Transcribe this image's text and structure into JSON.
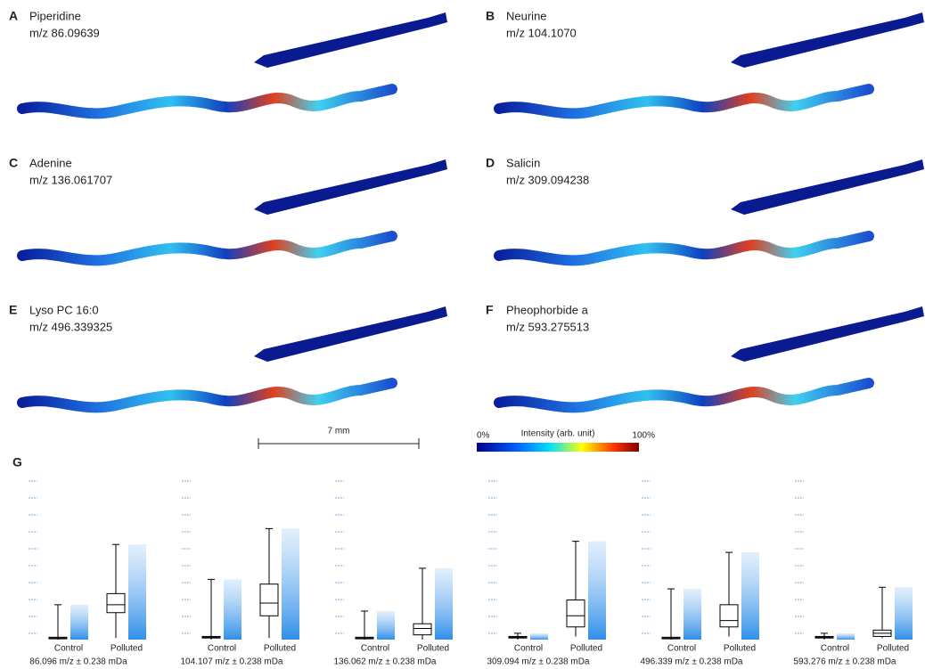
{
  "panels": [
    {
      "letter": "A",
      "compound": "Piperidine",
      "mz": "m/z 86.09639"
    },
    {
      "letter": "B",
      "compound": "Neurine",
      "mz": "m/z 104.1070"
    },
    {
      "letter": "C",
      "compound": "Adenine",
      "mz": "m/z 136.061707"
    },
    {
      "letter": "D",
      "compound": "Salicin",
      "mz": "m/z 309.094238"
    },
    {
      "letter": "E",
      "compound": "Lyso PC 16:0",
      "mz": "m/z 496.339325"
    },
    {
      "letter": "F",
      "compound": "Pheophorbide a",
      "mz": "m/z 593.275513"
    }
  ],
  "scale_bar": "7 mm",
  "colorbar": {
    "min_label": "0%",
    "title": "Intensity (arb. unit)",
    "max_label": "100%"
  },
  "boxplot_panel": {
    "letter": "G",
    "ylim": [
      0,
      100
    ],
    "plots": [
      {
        "label": "86.096 m/z ± 0.238  mDa",
        "groups": [
          {
            "name": "Control",
            "stats": [
              0,
              0.5,
              1,
              1.5,
              22
            ]
          },
          {
            "name": "Polluted",
            "stats": [
              1,
              17,
              22,
              29,
              60
            ]
          }
        ]
      },
      {
        "label": "104.107 m/z ± 0.238  mDa",
        "groups": [
          {
            "name": "Control",
            "stats": [
              0,
              1,
              1.5,
              2,
              38
            ]
          },
          {
            "name": "Polluted",
            "stats": [
              1,
              15,
              23,
              35,
              70
            ]
          }
        ]
      },
      {
        "label": "136.062 m/z ± 0.238  mDa",
        "groups": [
          {
            "name": "Control",
            "stats": [
              0,
              0.5,
              1,
              1.5,
              18
            ]
          },
          {
            "name": "Polluted",
            "stats": [
              0,
              3,
              7,
              10,
              45
            ]
          }
        ]
      },
      {
        "label": "309.094 m/z ± 0.238  mDa",
        "groups": [
          {
            "name": "Control",
            "stats": [
              0,
              1,
              1.5,
              2,
              4
            ]
          },
          {
            "name": "Polluted",
            "stats": [
              2,
              8,
              15,
              25,
              62
            ]
          }
        ]
      },
      {
        "label": "496.339 m/z ± 0.238  mDa",
        "groups": [
          {
            "name": "Control",
            "stats": [
              0,
              0.5,
              1,
              1.5,
              32
            ]
          },
          {
            "name": "Polluted",
            "stats": [
              2,
              8,
              12,
              22,
              55
            ]
          }
        ]
      },
      {
        "label": "593.276 m/z ± 0.238  mDa",
        "groups": [
          {
            "name": "Control",
            "stats": [
              0,
              1,
              1.5,
              2,
              4
            ]
          },
          {
            "name": "Polluted",
            "stats": [
              1,
              2,
              4,
              6,
              33
            ]
          }
        ]
      }
    ]
  }
}
